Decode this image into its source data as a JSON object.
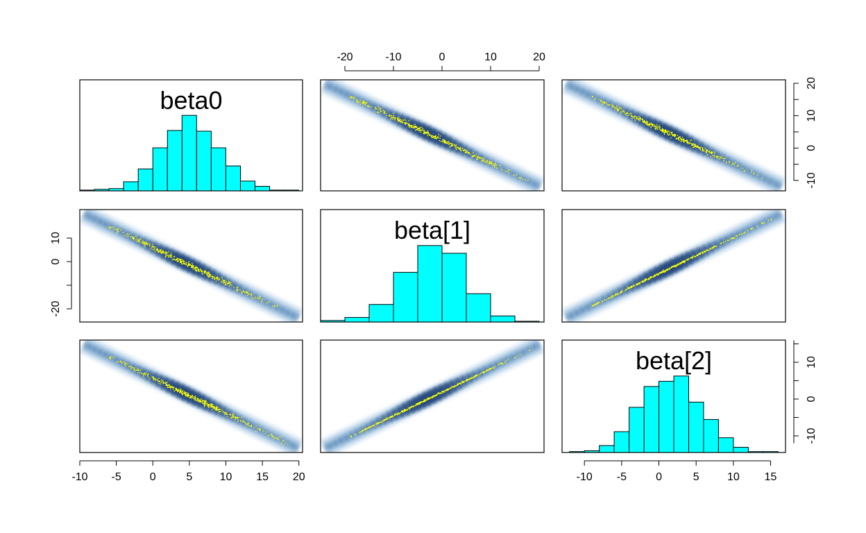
{
  "colors": {
    "hist_fill": "#00FFFF",
    "hist_stroke": "#000000",
    "density_dark": "#08306B",
    "density_mid": "#2171B5",
    "density_light": "#C6DBEF",
    "points": "#FFFF00",
    "frame": "#000000"
  },
  "chart_data": {
    "type": "pairs",
    "variables": [
      "beta0",
      "beta[1]",
      "beta[2]"
    ],
    "grid": false,
    "legend": "none",
    "ranges": {
      "beta0": [
        -10,
        20.5
      ],
      "beta[1]": [
        -25,
        21
      ],
      "beta[2]": [
        -13,
        17
      ]
    },
    "ticks": {
      "beta0": [
        -10,
        -5,
        0,
        5,
        10,
        15,
        20
      ],
      "beta[1]": [
        -20,
        -10,
        0,
        10,
        20
      ],
      "beta[1]_left": [
        -20,
        0,
        10
      ],
      "beta[2]_bottom": [
        -10,
        -5,
        0,
        5,
        10,
        15
      ],
      "beta[2]_right_row1": [
        -10,
        0,
        10,
        20
      ],
      "beta[2]_right_row3": [
        -10,
        0,
        10
      ]
    },
    "histograms": [
      {
        "variable": "beta0",
        "title": "beta0",
        "bin_edges": [
          -10,
          -8,
          -6,
          -4,
          -2,
          0,
          2,
          4,
          6,
          8,
          10,
          12,
          14,
          16,
          18,
          20
        ],
        "counts": [
          1,
          2,
          3,
          12,
          29,
          57,
          80,
          100,
          79,
          57,
          33,
          13,
          6,
          1,
          1
        ]
      },
      {
        "variable": "beta[1]",
        "title": "beta[1]",
        "bin_edges": [
          -25,
          -20,
          -15,
          -10,
          -5,
          0,
          5,
          10,
          15,
          20
        ],
        "counts": [
          2,
          6,
          23,
          65,
          100,
          90,
          37,
          8,
          1
        ]
      },
      {
        "variable": "beta[2]",
        "title": "beta[2]",
        "bin_edges": [
          -12,
          -10,
          -8,
          -6,
          -4,
          -2,
          0,
          2,
          4,
          6,
          8,
          10,
          12,
          14,
          16
        ],
        "counts": [
          1,
          2,
          8,
          24,
          52,
          76,
          82,
          88,
          58,
          38,
          17,
          6,
          1,
          1
        ]
      }
    ],
    "correlations": {
      "beta0_vs_beta[1]": -0.99,
      "beta0_vs_beta[2]": -0.99,
      "beta[1]_vs_beta[2]": 0.99
    },
    "scatter_axes": {
      "x_beta0": [
        -4,
        20
      ],
      "x_beta[1]": [
        -22,
        19
      ],
      "x_beta[2]": [
        -12,
        16
      ]
    }
  }
}
